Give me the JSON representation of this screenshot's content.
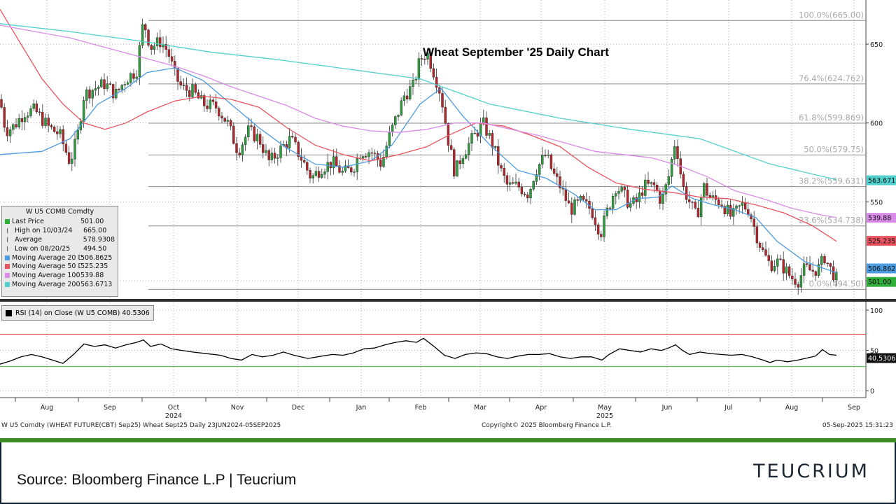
{
  "chart_data": {
    "type": "candlestick",
    "title": "Wheat September '25 Daily Chart",
    "price_axis": {
      "ylim": [
        488,
        678
      ],
      "ticks": [
        500,
        550,
        600,
        650
      ]
    },
    "time_axis": {
      "months": [
        "Aug",
        "Sep",
        "Oct",
        "Nov",
        "Dec",
        "Jan",
        "Feb",
        "Mar",
        "Apr",
        "May",
        "Jun",
        "Jul",
        "Aug",
        "Sep"
      ],
      "years": [
        "2024",
        "2025"
      ]
    },
    "fib_levels": [
      {
        "label": "100.0%(665.00)",
        "value": 665.0
      },
      {
        "label": "76.4%(624.762)",
        "value": 624.762
      },
      {
        "label": "61.8%(599.869)",
        "value": 599.869
      },
      {
        "label": "50.0%(579.75)",
        "value": 579.75
      },
      {
        "label": "38.2%(559.631)",
        "value": 559.631
      },
      {
        "label": "23.6%(534.738)",
        "value": 534.738
      },
      {
        "label": "0.0%(494.50)",
        "value": 494.5
      }
    ],
    "price_path": [
      [
        0,
        615
      ],
      [
        8,
        595
      ],
      [
        20,
        598
      ],
      [
        35,
        607
      ],
      [
        50,
        608
      ],
      [
        70,
        597
      ],
      [
        85,
        593
      ],
      [
        100,
        575
      ],
      [
        110,
        590
      ],
      [
        120,
        618
      ],
      [
        135,
        622
      ],
      [
        150,
        625
      ],
      [
        165,
        618
      ],
      [
        180,
        628
      ],
      [
        195,
        633
      ],
      [
        205,
        665
      ],
      [
        215,
        648
      ],
      [
        230,
        652
      ],
      [
        240,
        645
      ],
      [
        250,
        630
      ],
      [
        260,
        622
      ],
      [
        275,
        620
      ],
      [
        290,
        612
      ],
      [
        310,
        610
      ],
      [
        325,
        600
      ],
      [
        340,
        582
      ],
      [
        355,
        595
      ],
      [
        370,
        590
      ],
      [
        385,
        575
      ],
      [
        400,
        583
      ],
      [
        415,
        590
      ],
      [
        430,
        578
      ],
      [
        445,
        565
      ],
      [
        460,
        572
      ],
      [
        475,
        575
      ],
      [
        490,
        568
      ],
      [
        505,
        572
      ],
      [
        515,
        582
      ],
      [
        530,
        582
      ],
      [
        545,
        574
      ],
      [
        555,
        590
      ],
      [
        565,
        602
      ],
      [
        578,
        618
      ],
      [
        590,
        623
      ],
      [
        600,
        640
      ],
      [
        610,
        645
      ],
      [
        620,
        632
      ],
      [
        630,
        618
      ],
      [
        640,
        590
      ],
      [
        650,
        568
      ],
      [
        660,
        580
      ],
      [
        675,
        590
      ],
      [
        690,
        600
      ],
      [
        705,
        585
      ],
      [
        715,
        570
      ],
      [
        725,
        560
      ],
      [
        740,
        560
      ],
      [
        755,
        555
      ],
      [
        765,
        570
      ],
      [
        780,
        580
      ],
      [
        790,
        568
      ],
      [
        800,
        560
      ],
      [
        815,
        545
      ],
      [
        830,
        550
      ],
      [
        845,
        545
      ],
      [
        858,
        530
      ],
      [
        868,
        545
      ],
      [
        880,
        560
      ],
      [
        890,
        555
      ],
      [
        900,
        548
      ],
      [
        910,
        550
      ],
      [
        920,
        560
      ],
      [
        935,
        560
      ],
      [
        945,
        550
      ],
      [
        955,
        565
      ],
      [
        965,
        590
      ],
      [
        975,
        560
      ],
      [
        985,
        550
      ],
      [
        995,
        540
      ],
      [
        1005,
        560
      ],
      [
        1015,
        552
      ],
      [
        1030,
        550
      ],
      [
        1045,
        540
      ],
      [
        1060,
        548
      ],
      [
        1070,
        545
      ],
      [
        1080,
        530
      ],
      [
        1090,
        518
      ],
      [
        1100,
        510
      ],
      [
        1110,
        512
      ],
      [
        1120,
        508
      ],
      [
        1130,
        502
      ],
      [
        1140,
        500
      ],
      [
        1150,
        508
      ],
      [
        1160,
        506
      ],
      [
        1170,
        508
      ],
      [
        1178,
        515
      ],
      [
        1185,
        508
      ],
      [
        1190,
        505
      ],
      [
        1195,
        501
      ]
    ],
    "series": [
      {
        "name": "Moving Average 20 Day",
        "color": "#4b9be0",
        "values": [
          [
            0,
            580
          ],
          [
            60,
            582
          ],
          [
            100,
            590
          ],
          [
            140,
            612
          ],
          [
            180,
            622
          ],
          [
            210,
            632
          ],
          [
            250,
            635
          ],
          [
            290,
            627
          ],
          [
            330,
            612
          ],
          [
            370,
            597
          ],
          [
            410,
            584
          ],
          [
            450,
            574
          ],
          [
            490,
            572
          ],
          [
            530,
            576
          ],
          [
            560,
            586
          ],
          [
            600,
            612
          ],
          [
            630,
            622
          ],
          [
            660,
            605
          ],
          [
            700,
            586
          ],
          [
            740,
            570
          ],
          [
            780,
            565
          ],
          [
            820,
            555
          ],
          [
            850,
            545
          ],
          [
            880,
            545
          ],
          [
            910,
            552
          ],
          [
            940,
            553
          ],
          [
            960,
            560
          ],
          [
            990,
            552
          ],
          [
            1020,
            548
          ],
          [
            1050,
            545
          ],
          [
            1080,
            540
          ],
          [
            1110,
            525
          ],
          [
            1150,
            512
          ],
          [
            1195,
            505
          ]
        ]
      },
      {
        "name": "Moving Average 50 Day",
        "color": "#e8535f",
        "values": [
          [
            0,
            672
          ],
          [
            30,
            650
          ],
          [
            60,
            628
          ],
          [
            90,
            612
          ],
          [
            120,
            600
          ],
          [
            150,
            596
          ],
          [
            180,
            600
          ],
          [
            210,
            607
          ],
          [
            250,
            614
          ],
          [
            290,
            617
          ],
          [
            330,
            615
          ],
          [
            370,
            610
          ],
          [
            410,
            597
          ],
          [
            450,
            586
          ],
          [
            490,
            580
          ],
          [
            530,
            576
          ],
          [
            570,
            580
          ],
          [
            610,
            585
          ],
          [
            640,
            592
          ],
          [
            680,
            600
          ],
          [
            720,
            598
          ],
          [
            760,
            592
          ],
          [
            800,
            585
          ],
          [
            840,
            572
          ],
          [
            880,
            562
          ],
          [
            920,
            558
          ],
          [
            960,
            556
          ],
          [
            1000,
            553
          ],
          [
            1040,
            552
          ],
          [
            1080,
            548
          ],
          [
            1120,
            543
          ],
          [
            1160,
            535
          ],
          [
            1195,
            525
          ]
        ]
      },
      {
        "name": "Moving Average 100 Day",
        "color": "#d98be8",
        "values": [
          [
            0,
            662
          ],
          [
            50,
            658
          ],
          [
            100,
            654
          ],
          [
            150,
            648
          ],
          [
            200,
            642
          ],
          [
            250,
            636
          ],
          [
            290,
            630
          ],
          [
            330,
            623
          ],
          [
            370,
            617
          ],
          [
            410,
            611
          ],
          [
            450,
            603
          ],
          [
            490,
            598
          ],
          [
            530,
            595
          ],
          [
            570,
            594
          ],
          [
            610,
            596
          ],
          [
            650,
            600
          ],
          [
            690,
            600
          ],
          [
            730,
            596
          ],
          [
            770,
            592
          ],
          [
            810,
            587
          ],
          [
            850,
            582
          ],
          [
            890,
            580
          ],
          [
            930,
            578
          ],
          [
            970,
            573
          ],
          [
            1010,
            566
          ],
          [
            1050,
            557
          ],
          [
            1090,
            552
          ],
          [
            1130,
            546
          ],
          [
            1170,
            542
          ],
          [
            1195,
            540
          ]
        ]
      },
      {
        "name": "Moving Average 200 Day",
        "color": "#4fd0cc",
        "values": [
          [
            0,
            663
          ],
          [
            100,
            658
          ],
          [
            200,
            652
          ],
          [
            300,
            645
          ],
          [
            400,
            640
          ],
          [
            500,
            634
          ],
          [
            600,
            628
          ],
          [
            700,
            612
          ],
          [
            800,
            603
          ],
          [
            900,
            596
          ],
          [
            1000,
            590
          ],
          [
            1100,
            574
          ],
          [
            1195,
            564
          ]
        ]
      }
    ],
    "rsi": {
      "label": "RSI (14)   on Close (W U5 COMB) 40.5306",
      "ylim": [
        0,
        100
      ],
      "ticks": [
        0,
        50,
        100
      ],
      "overbought": 70,
      "oversold": 30,
      "last": "40.5306",
      "values": [
        [
          0,
          33
        ],
        [
          15,
          37
        ],
        [
          30,
          42
        ],
        [
          45,
          45
        ],
        [
          60,
          42
        ],
        [
          75,
          38
        ],
        [
          90,
          34
        ],
        [
          105,
          45
        ],
        [
          120,
          58
        ],
        [
          135,
          55
        ],
        [
          150,
          57
        ],
        [
          165,
          53
        ],
        [
          180,
          57
        ],
        [
          195,
          60
        ],
        [
          205,
          63
        ],
        [
          215,
          55
        ],
        [
          230,
          58
        ],
        [
          245,
          52
        ],
        [
          260,
          50
        ],
        [
          275,
          48
        ],
        [
          295,
          46
        ],
        [
          315,
          44
        ],
        [
          330,
          40
        ],
        [
          345,
          38
        ],
        [
          360,
          45
        ],
        [
          375,
          42
        ],
        [
          390,
          44
        ],
        [
          405,
          48
        ],
        [
          420,
          44
        ],
        [
          440,
          40
        ],
        [
          460,
          43
        ],
        [
          475,
          45
        ],
        [
          490,
          44
        ],
        [
          505,
          47
        ],
        [
          520,
          52
        ],
        [
          535,
          53
        ],
        [
          550,
          57
        ],
        [
          565,
          60
        ],
        [
          580,
          62
        ],
        [
          595,
          60
        ],
        [
          605,
          65
        ],
        [
          620,
          55
        ],
        [
          635,
          44
        ],
        [
          650,
          40
        ],
        [
          665,
          45
        ],
        [
          680,
          47
        ],
        [
          695,
          46
        ],
        [
          710,
          42
        ],
        [
          725,
          40
        ],
        [
          740,
          43
        ],
        [
          755,
          45
        ],
        [
          770,
          45
        ],
        [
          785,
          46
        ],
        [
          800,
          42
        ],
        [
          815,
          40
        ],
        [
          830,
          42
        ],
        [
          845,
          42
        ],
        [
          860,
          38
        ],
        [
          870,
          45
        ],
        [
          885,
          52
        ],
        [
          900,
          50
        ],
        [
          915,
          48
        ],
        [
          930,
          52
        ],
        [
          945,
          50
        ],
        [
          955,
          53
        ],
        [
          965,
          57
        ],
        [
          975,
          50
        ],
        [
          985,
          45
        ],
        [
          1000,
          48
        ],
        [
          1015,
          46
        ],
        [
          1030,
          45
        ],
        [
          1045,
          44
        ],
        [
          1060,
          45
        ],
        [
          1075,
          42
        ],
        [
          1090,
          38
        ],
        [
          1100,
          35
        ],
        [
          1110,
          38
        ],
        [
          1125,
          36
        ],
        [
          1140,
          38
        ],
        [
          1155,
          41
        ],
        [
          1165,
          43
        ],
        [
          1175,
          51
        ],
        [
          1185,
          45
        ],
        [
          1195,
          44
        ]
      ]
    },
    "right_labels": [
      {
        "text": "563.6713",
        "value": 563.6713,
        "color": "#4fd0cc"
      },
      {
        "text": "539.88",
        "value": 539.88,
        "color": "#d98be8"
      },
      {
        "text": "525.235",
        "value": 525.235,
        "color": "#e8535f"
      },
      {
        "text": "506.8625",
        "value": 506.8625,
        "color": "#4b9be0"
      },
      {
        "text": "501.00",
        "value": 501.0,
        "color": "#2fae3a"
      }
    ]
  },
  "legend": {
    "title": "W U5 COMB Comdty",
    "rows": [
      {
        "label": "Last Price",
        "value": "501.00",
        "color": "#2fae3a"
      },
      {
        "label": "High on 10/03/24",
        "value": "665.00",
        "color": ""
      },
      {
        "label": "Average",
        "value": "578.9308",
        "color": ""
      },
      {
        "label": "Low on 08/20/25",
        "value": "494.50",
        "color": ""
      },
      {
        "label": "Moving Average 20 Day",
        "value": "506.8625",
        "color": "#4b9be0"
      },
      {
        "label": "Moving Average 50 Day",
        "value": "525.235",
        "color": "#e8535f"
      },
      {
        "label": "Moving Average 100 Day",
        "value": "539.88",
        "color": "#d98be8"
      },
      {
        "label": "Moving Average 200 Day",
        "value": "563.6713",
        "color": "#4fd0cc"
      }
    ]
  },
  "footer": {
    "description": "W U5 Comdty (WHEAT FUTURE(CBT) Sep25) Wheat Sept25  Daily 23JUN2024-05SEP2025",
    "copyright": "Copyright© 2025 Bloomberg Finance L.P.",
    "timestamp": "05-Sep-2025 15:31:23",
    "source": "Source: Bloomberg Finance L.P | Teucrium",
    "brand": "TEUCRIUM"
  }
}
